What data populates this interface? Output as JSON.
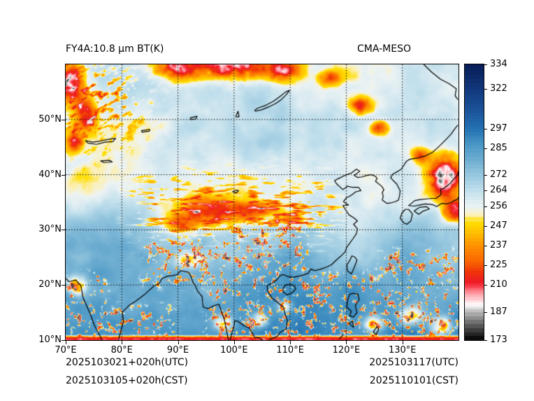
{
  "header": {
    "title_left": "FY4A:10.8 μm BT(K)",
    "title_right": "CMA-MESO"
  },
  "footer": {
    "init_utc": "2025103021+020h(UTC)",
    "init_cst": "2025103105+020h(CST)",
    "valid_utc": "2025103117(UTC)",
    "valid_cst": "2025110101(CST)"
  },
  "chart_data": {
    "type": "heatmap",
    "title": "FY4A:10.8 μm BT(K)",
    "model_label": "CMA-MESO",
    "variable": "10.8 μm brightness temperature",
    "units": "K",
    "projection": "lat-lon",
    "x_axis": {
      "min": 70,
      "max": 140,
      "ticks": [
        70,
        80,
        90,
        100,
        110,
        120,
        130
      ],
      "tick_suffix": "°E"
    },
    "y_axis": {
      "min": 10,
      "max": 60,
      "ticks": [
        10,
        20,
        30,
        40,
        50
      ],
      "tick_suffix": "°N"
    },
    "grid": {
      "visible": true,
      "style": "dotted",
      "color": "#000000"
    },
    "coastline_color": "#000000",
    "colorbar": {
      "min": 173,
      "max": 334,
      "ticks": [
        {
          "value": 334,
          "frac": 0.0
        },
        {
          "value": 322,
          "frac": 0.089
        },
        {
          "value": 297,
          "frac": 0.234
        },
        {
          "value": 285,
          "frac": 0.305
        },
        {
          "value": 272,
          "frac": 0.401
        },
        {
          "value": 264,
          "frac": 0.457
        },
        {
          "value": 256,
          "frac": 0.515
        },
        {
          "value": 247,
          "frac": 0.586
        },
        {
          "value": 237,
          "frac": 0.657
        },
        {
          "value": 225,
          "frac": 0.728
        },
        {
          "value": 210,
          "frac": 0.799
        },
        {
          "value": 187,
          "frac": 0.898
        },
        {
          "value": 173,
          "frac": 1.0
        }
      ],
      "stops": [
        {
          "v": 173,
          "c": "#000000"
        },
        {
          "v": 179,
          "c": "#484848"
        },
        {
          "v": 184,
          "c": "#8e8e8e"
        },
        {
          "v": 189,
          "c": "#cfcfcf"
        },
        {
          "v": 193,
          "c": "#ffffff"
        },
        {
          "v": 197,
          "c": "#ffd2d7"
        },
        {
          "v": 203,
          "c": "#ff9aa4"
        },
        {
          "v": 208,
          "c": "#fb4a57"
        },
        {
          "v": 212,
          "c": "#ee1c25"
        },
        {
          "v": 220,
          "c": "#f03408"
        },
        {
          "v": 228,
          "c": "#fa6a00"
        },
        {
          "v": 237,
          "c": "#ff9100"
        },
        {
          "v": 244,
          "c": "#ffc200"
        },
        {
          "v": 249,
          "c": "#ffdf00"
        },
        {
          "v": 252,
          "c": "#fcf0b6"
        },
        {
          "v": 255,
          "c": "#eef4f3"
        },
        {
          "v": 259,
          "c": "#dcecf2"
        },
        {
          "v": 264,
          "c": "#c0dfec"
        },
        {
          "v": 272,
          "c": "#96c7df"
        },
        {
          "v": 280,
          "c": "#6aabd0"
        },
        {
          "v": 288,
          "c": "#4795c4"
        },
        {
          "v": 297,
          "c": "#2472b3"
        },
        {
          "v": 308,
          "c": "#1c549b"
        },
        {
          "v": 320,
          "c": "#133c80"
        },
        {
          "v": 334,
          "c": "#081d58"
        }
      ]
    },
    "field_summary": {
      "background_bt_north_K": 260,
      "background_bt_south_K": 290,
      "cold_cloud_clusters": [
        {
          "lon": 71.0,
          "lat": 56.5,
          "rx": 2.2,
          "ry": 3.2,
          "depth": 80
        },
        {
          "lon": 73.5,
          "lat": 51.0,
          "rx": 1.6,
          "ry": 2.6,
          "depth": 58
        },
        {
          "lon": 71.5,
          "lat": 46.0,
          "rx": 1.2,
          "ry": 1.8,
          "depth": 45
        },
        {
          "lon": 90.0,
          "lat": 59.5,
          "rx": 3.5,
          "ry": 2.0,
          "depth": 70
        },
        {
          "lon": 99.5,
          "lat": 60.2,
          "rx": 5.0,
          "ry": 2.4,
          "depth": 85
        },
        {
          "lon": 108.5,
          "lat": 59.0,
          "rx": 3.0,
          "ry": 1.7,
          "depth": 60
        },
        {
          "lon": 117.0,
          "lat": 57.5,
          "rx": 1.6,
          "ry": 1.2,
          "depth": 42
        },
        {
          "lon": 122.5,
          "lat": 52.5,
          "rx": 1.8,
          "ry": 1.4,
          "depth": 50
        },
        {
          "lon": 126.0,
          "lat": 48.5,
          "rx": 1.4,
          "ry": 1.1,
          "depth": 45
        },
        {
          "lon": 96.5,
          "lat": 33.2,
          "rx": 6.0,
          "ry": 2.3,
          "depth": 50
        },
        {
          "lon": 90.5,
          "lat": 31.0,
          "rx": 2.6,
          "ry": 1.5,
          "depth": 44
        },
        {
          "lon": 104.0,
          "lat": 33.5,
          "rx": 3.5,
          "ry": 1.4,
          "depth": 40
        },
        {
          "lon": 110.5,
          "lat": 32.0,
          "rx": 2.2,
          "ry": 1.0,
          "depth": 34
        },
        {
          "lon": 137.5,
          "lat": 39.5,
          "rx": 2.6,
          "ry": 3.2,
          "depth": 85
        },
        {
          "lon": 139.5,
          "lat": 33.5,
          "rx": 2.0,
          "ry": 1.8,
          "depth": 60
        },
        {
          "lon": 133.5,
          "lat": 43.5,
          "rx": 1.5,
          "ry": 1.1,
          "depth": 40
        },
        {
          "lon": 72.0,
          "lat": 20.0,
          "rx": 1.5,
          "ry": 1.5,
          "depth": 52
        },
        {
          "lon": 98.0,
          "lat": 13.0,
          "rx": 1.6,
          "ry": 1.3,
          "depth": 55
        },
        {
          "lon": 104.5,
          "lat": 13.5,
          "rx": 1.4,
          "ry": 1.2,
          "depth": 50
        },
        {
          "lon": 109.0,
          "lat": 16.0,
          "rx": 1.2,
          "ry": 1.0,
          "depth": 45
        },
        {
          "lon": 125.0,
          "lat": 13.0,
          "rx": 1.6,
          "ry": 1.3,
          "depth": 55
        },
        {
          "lon": 131.5,
          "lat": 14.5,
          "rx": 1.8,
          "ry": 1.4,
          "depth": 58
        },
        {
          "lon": 137.0,
          "lat": 12.5,
          "rx": 1.6,
          "ry": 1.4,
          "depth": 58
        },
        {
          "lon": 92.0,
          "lat": 24.5,
          "rx": 2.2,
          "ry": 1.2,
          "depth": 40
        }
      ]
    }
  }
}
